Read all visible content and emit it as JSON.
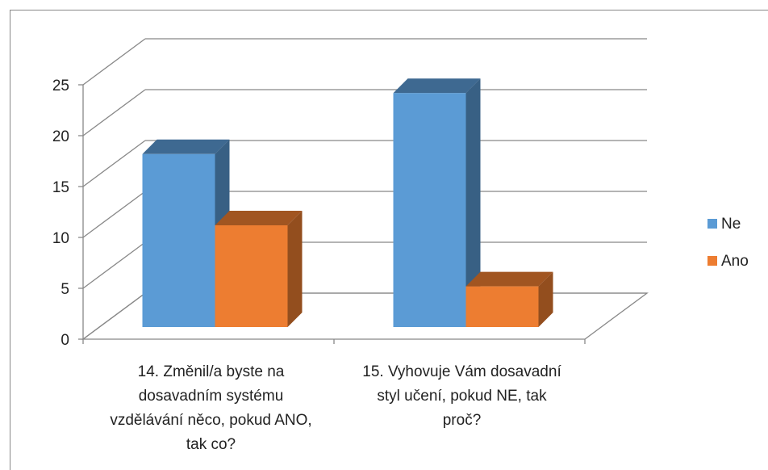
{
  "chart_data": {
    "type": "bar3d",
    "categories": [
      "14. Změnil/a byste na dosavadním systému vzdělávání něco, pokud ANO, tak co?",
      "15. Vyhovuje Vám dosavadní styl učení, pokud NE, tak proč?"
    ],
    "series": [
      {
        "name": "Ne",
        "color": "#5b9bd5",
        "values": [
          17,
          23
        ]
      },
      {
        "name": "Ano",
        "color": "#ed7d31",
        "values": [
          10,
          4
        ]
      }
    ],
    "ylim": [
      0,
      25
    ],
    "yticks": [
      0,
      5,
      10,
      15,
      20,
      25
    ],
    "grid": true,
    "legend": "right"
  }
}
